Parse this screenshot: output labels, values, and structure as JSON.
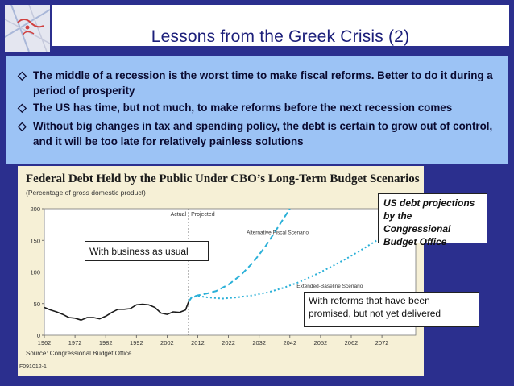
{
  "title": "Lessons from the Greek Crisis (2)",
  "bullets": [
    {
      "icon": "diamond-outline-icon",
      "text": "The middle of a recession is the worst time to make fiscal reforms. Better to do it during a period of prosperity"
    },
    {
      "icon": "diamond-outline-icon",
      "text": "The US has time, but not much, to make reforms before the next recession comes"
    },
    {
      "icon": "diamond-outline-icon",
      "text": "Without big changes in tax and spending policy, the debt is certain to grow out of control, and it will be too late for relatively painless solutions"
    }
  ],
  "chart_data": {
    "type": "line",
    "title": "Federal Debt Held by the Public Under CBO’s Long-Term Budget Scenarios",
    "subtitle": "(Percentage of gross domestic product)",
    "xlabel": "",
    "ylabel": "",
    "xlim": [
      1962,
      2083
    ],
    "ylim": [
      0,
      200
    ],
    "xticks": [
      1962,
      1972,
      1982,
      1992,
      2002,
      2012,
      2022,
      2032,
      2042,
      2052,
      2062,
      2072
    ],
    "yticks": [
      0,
      50,
      100,
      150,
      200
    ],
    "divider_year": 2009,
    "divider_labels": [
      "Actual",
      "Projected"
    ],
    "grid": false,
    "source": "Source:   Congressional Budget Office.",
    "figure_code": "F091012-1",
    "series": [
      {
        "name": "",
        "style": "solid",
        "x": [
          1962,
          1964,
          1966,
          1968,
          1970,
          1972,
          1974,
          1976,
          1978,
          1980,
          1982,
          1984,
          1986,
          1988,
          1990,
          1992,
          1994,
          1996,
          1998,
          2000,
          2002,
          2004,
          2006,
          2008,
          2009
        ],
        "values": [
          44,
          40,
          37,
          33,
          28,
          27,
          24,
          28,
          28,
          26,
          30,
          36,
          41,
          41,
          42,
          48,
          49,
          48,
          44,
          35,
          33,
          37,
          36,
          40,
          53
        ]
      },
      {
        "name": "Alternative Fiscal Scenario",
        "style": "dashed",
        "x": [
          2009,
          2010,
          2012,
          2015,
          2018,
          2022,
          2026,
          2030,
          2034,
          2038,
          2042
        ],
        "values": [
          53,
          60,
          63,
          66,
          70,
          80,
          95,
          115,
          140,
          170,
          200
        ]
      },
      {
        "name": "Extended-Baseline Scenario",
        "style": "dotted",
        "x": [
          2009,
          2010,
          2012,
          2015,
          2020,
          2025,
          2030,
          2035,
          2040,
          2045,
          2050,
          2055,
          2060,
          2065,
          2070,
          2075,
          2080,
          2083
        ],
        "values": [
          53,
          60,
          62,
          60,
          58,
          60,
          63,
          68,
          75,
          84,
          95,
          107,
          120,
          134,
          149,
          165,
          182,
          193
        ]
      }
    ]
  },
  "callouts": {
    "business": "With business as usual",
    "reforms": "With reforms that have been promised, but not yet delivered",
    "cbo": "US debt projections by the Congressional Budget Office"
  },
  "colors": {
    "background": "#2b2f8e",
    "bullet_box": "#9cc3f5",
    "chart_panel": "#f6f0d6",
    "solid_line": "#1a1a1a",
    "projection_lines": "#2ab0d8"
  }
}
